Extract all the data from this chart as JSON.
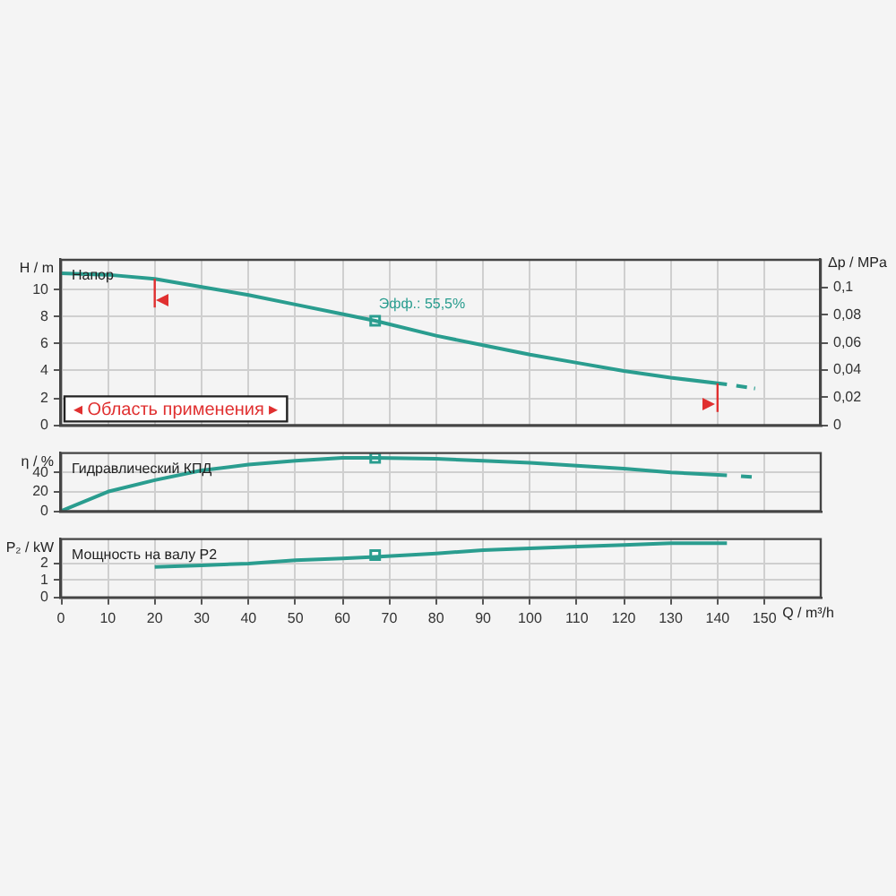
{
  "chart_data": [
    {
      "type": "line",
      "xlim": [
        0,
        162
      ],
      "xticks": [
        0,
        10,
        20,
        30,
        40,
        50,
        60,
        70,
        80,
        90,
        100,
        110,
        120,
        130,
        140,
        150
      ],
      "ylim": [
        0,
        12.2
      ],
      "yticks": [
        0,
        2,
        4,
        6,
        8,
        10
      ],
      "y2lim": [
        0,
        0.12
      ],
      "y2ticks": [
        0,
        {
          "value": 0.02,
          "label": "0,02"
        },
        {
          "value": 0.04,
          "label": "0,04"
        },
        {
          "value": 0.06,
          "label": "0,06"
        },
        {
          "value": 0.08,
          "label": "0,08"
        },
        {
          "value": 0.1,
          "label": "0,1"
        }
      ],
      "ylabel": "H / m",
      "y2label": "Δp / MPa",
      "grid": true,
      "tick_labels": "y",
      "legend": false,
      "series": [
        {
          "type": "line",
          "color": "#2a9d8f",
          "marker": "none",
          "line_style": "solid",
          "x": [
            0,
            10,
            20,
            30,
            40,
            50,
            60,
            67,
            80,
            90,
            100,
            110,
            120,
            130,
            142
          ],
          "values": [
            11.2,
            11.1,
            10.8,
            10.2,
            9.6,
            8.9,
            8.2,
            7.7,
            6.6,
            5.9,
            5.2,
            4.6,
            4.0,
            3.5,
            3.0
          ]
        },
        {
          "type": "line",
          "color": "#2a9d8f",
          "marker": "none",
          "line_style": "dashed",
          "x": [
            144,
            148
          ],
          "values": [
            2.9,
            2.7
          ]
        },
        {
          "type": "scatter",
          "color": "#2a9d8f",
          "marker": "square",
          "x": [
            67
          ],
          "values": [
            7.7
          ]
        }
      ],
      "ref_lines": [
        {
          "axis": "x",
          "value": 20,
          "label": null,
          "color": "#e03030"
        },
        {
          "axis": "x",
          "value": 140,
          "label": null,
          "color": "#e03030"
        }
      ],
      "annotations": [
        "Напор",
        "◂ Область применения ▸",
        {
          "text": "Эфф.: 55,5%",
          "x": 67,
          "y": 7.7
        }
      ]
    },
    {
      "type": "line",
      "xlim": [
        0,
        162
      ],
      "xticks": [
        0,
        10,
        20,
        30,
        40,
        50,
        60,
        70,
        80,
        90,
        100,
        110,
        120,
        130,
        140,
        150
      ],
      "ylim": [
        0,
        60
      ],
      "yticks": [
        0,
        20,
        40
      ],
      "ylabel": "η / %",
      "grid": true,
      "tick_labels": "y",
      "legend": false,
      "series": [
        {
          "type": "line",
          "color": "#2a9d8f",
          "marker": "none",
          "line_style": "solid",
          "x": [
            0,
            10,
            20,
            30,
            40,
            50,
            60,
            67,
            80,
            90,
            100,
            110,
            120,
            130,
            142
          ],
          "values": [
            0,
            20,
            32,
            42,
            48,
            52,
            55,
            55,
            54,
            52,
            50,
            47,
            44,
            40,
            37
          ]
        },
        {
          "type": "line",
          "color": "#2a9d8f",
          "marker": "none",
          "line_style": "dashed",
          "x": [
            145,
            148
          ],
          "values": [
            36,
            35
          ]
        },
        {
          "type": "scatter",
          "color": "#2a9d8f",
          "marker": "square",
          "x": [
            67
          ],
          "values": [
            55
          ]
        }
      ],
      "annotations": [
        "Гидравлический КПД"
      ]
    },
    {
      "type": "line",
      "xlim": [
        0,
        162
      ],
      "xticks": [
        0,
        10,
        20,
        30,
        40,
        50,
        60,
        70,
        80,
        90,
        100,
        110,
        120,
        130,
        140,
        150
      ],
      "ylim": [
        0,
        3.45
      ],
      "yticks": [
        0,
        1,
        2
      ],
      "ylabel": "P₂ / kW",
      "xlabel": "Q / m³/h",
      "grid": true,
      "legend": false,
      "series": [
        {
          "type": "line",
          "color": "#2a9d8f",
          "marker": "none",
          "line_style": "solid",
          "x": [
            20,
            30,
            40,
            50,
            60,
            67,
            80,
            90,
            100,
            110,
            120,
            130,
            142
          ],
          "values": [
            1.8,
            1.9,
            2.0,
            2.2,
            2.3,
            2.4,
            2.6,
            2.8,
            2.9,
            3.0,
            3.1,
            3.2,
            3.2
          ]
        },
        {
          "type": "scatter",
          "color": "#2a9d8f",
          "marker": "square",
          "x": [
            67
          ],
          "values": [
            2.5
          ]
        }
      ],
      "annotations": [
        "Мощность на валу P2"
      ]
    }
  ]
}
